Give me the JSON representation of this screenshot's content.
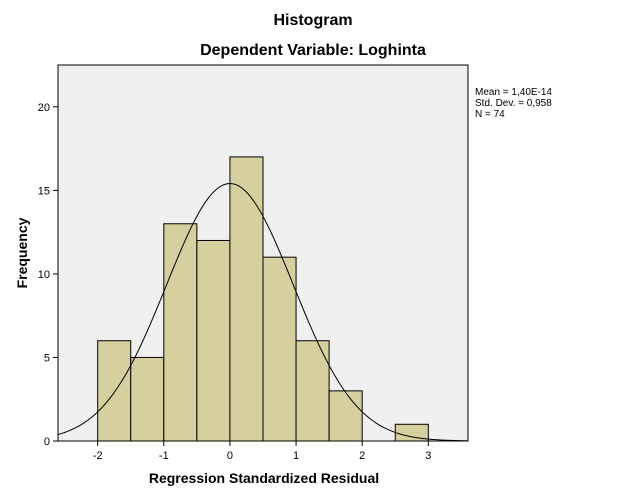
{
  "chart_data": {
    "type": "histogram",
    "title": "Histogram",
    "subtitle": "Dependent Variable: Loghinta",
    "xlabel": "Regression Standardized Residual",
    "ylabel": "Frequency",
    "xlim": [
      -2.6,
      3.6
    ],
    "ylim": [
      0,
      22.5
    ],
    "bin_width": 0.5,
    "bins": [
      {
        "start": -2.0,
        "end": -1.5,
        "count": 6
      },
      {
        "start": -1.5,
        "end": -1.0,
        "count": 5
      },
      {
        "start": -1.0,
        "end": -0.5,
        "count": 13
      },
      {
        "start": -0.5,
        "end": 0.0,
        "count": 12
      },
      {
        "start": 0.0,
        "end": 0.5,
        "count": 17
      },
      {
        "start": 0.5,
        "end": 1.0,
        "count": 11
      },
      {
        "start": 1.0,
        "end": 1.5,
        "count": 6
      },
      {
        "start": 1.5,
        "end": 2.0,
        "count": 3
      },
      {
        "start": 2.0,
        "end": 2.5,
        "count": 0
      },
      {
        "start": 2.5,
        "end": 3.0,
        "count": 1
      }
    ],
    "x_ticks": [
      -2,
      -1,
      0,
      1,
      2,
      3
    ],
    "x_tick_labels": [
      "-2",
      "-1",
      "0",
      "1",
      "2",
      "3"
    ],
    "y_ticks": [
      0,
      5,
      10,
      15,
      20
    ],
    "y_tick_labels": [
      "0",
      "5",
      "10",
      "15",
      "20"
    ],
    "normal_curve": {
      "mean": 0.0,
      "std_dev": 0.958,
      "n": 74
    },
    "stats": {
      "mean": "Mean = 1,40E-14",
      "std_dev": "Std. Dev. = 0,958",
      "n": "N = 74"
    },
    "colors": {
      "bar_fill": "#d5d09e",
      "bar_stroke": "#000000",
      "plot_background": "#f0f0f0",
      "curve": "#000000"
    }
  }
}
